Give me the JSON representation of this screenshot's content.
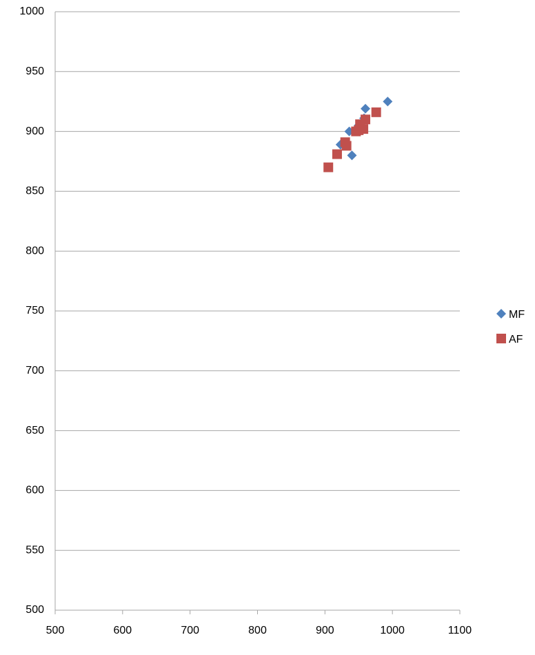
{
  "chart_data": {
    "type": "scatter",
    "xlim": [
      500,
      1100
    ],
    "xticks": [
      500,
      600,
      700,
      800,
      900,
      1000,
      1100
    ],
    "ylim": [
      500,
      1000
    ],
    "yticks": [
      500,
      550,
      600,
      650,
      700,
      750,
      800,
      850,
      900,
      950,
      1000
    ],
    "grid": true,
    "legend": "right",
    "series": [
      {
        "name": "MF",
        "color": "#4f81bd",
        "marker": "diamond",
        "x": [
          993,
          960,
          940,
          936,
          923,
          958,
          950
        ],
        "values": [
          925,
          919,
          880,
          900,
          889,
          911,
          905
        ]
      },
      {
        "name": "AF",
        "color": "#c0504d",
        "marker": "square",
        "x": [
          905,
          918,
          930,
          932,
          946,
          952,
          957,
          960,
          976,
          950
        ],
        "values": [
          870,
          881,
          891,
          888,
          900,
          906,
          902,
          910,
          916,
          901
        ]
      }
    ]
  }
}
